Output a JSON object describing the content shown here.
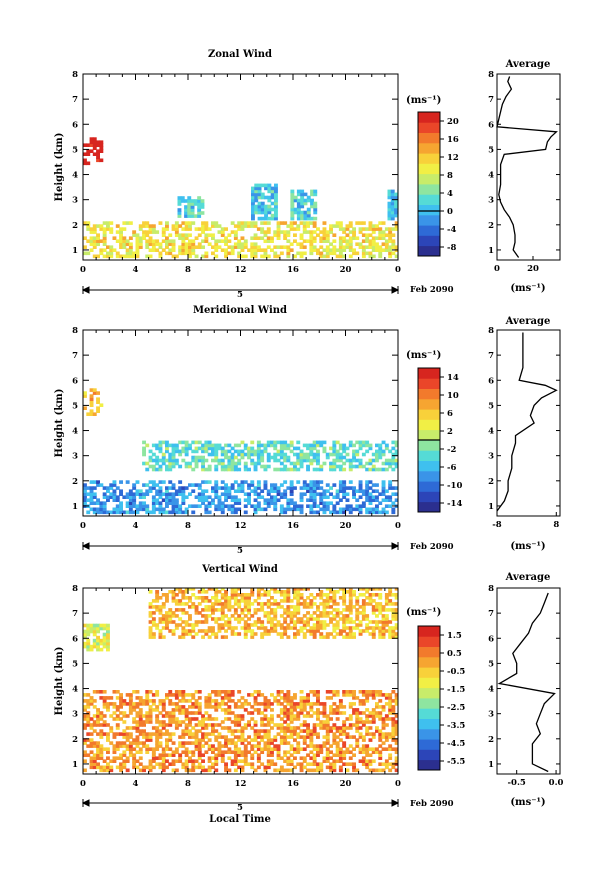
{
  "date_label": "Feb 2090",
  "xlabel": "Local Time",
  "ylabel": "Height (km)",
  "avg_title": "Average",
  "unit": "(ms⁻¹)",
  "panels": [
    {
      "title": "Zonal Wind",
      "colorbar": {
        "ticks": [
          "20",
          "16",
          "12",
          "8",
          "4",
          "0",
          "-4",
          "-8"
        ],
        "min": -10,
        "max": 22
      }
    },
    {
      "title": "Meridional Wind",
      "colorbar": {
        "ticks": [
          "14",
          "10",
          "6",
          "2",
          "-2",
          "-6",
          "-10",
          "-14"
        ],
        "min": -16,
        "max": 16
      }
    },
    {
      "title": "Vertical Wind",
      "colorbar": {
        "ticks": [
          "1.5",
          "0.5",
          "-0.5",
          "-1.5",
          "-2.5",
          "-3.5",
          "-4.5",
          "-5.5"
        ],
        "min": -6,
        "max": 2
      }
    }
  ],
  "chart_data": [
    {
      "type": "heatmap",
      "title": "Zonal Wind",
      "xlabel": "",
      "ylabel": "Height (km)",
      "x_ticks": [
        "0",
        "4",
        "8",
        "12",
        "16",
        "20",
        "0"
      ],
      "date_tick": "5",
      "xlim": [
        0,
        24
      ],
      "y_ticks": [
        "1",
        "2",
        "3",
        "4",
        "5",
        "6",
        "7",
        "8"
      ],
      "ylim": [
        0.6,
        8.0
      ],
      "colorbar_unit": "(ms⁻¹)",
      "colorbar_ticks": [
        20,
        16,
        12,
        8,
        4,
        0,
        -4,
        -8
      ],
      "clim": [
        -10,
        22
      ],
      "regions": [
        {
          "x": [
            0,
            1.5
          ],
          "y": [
            4.4,
            5.4
          ],
          "value": 22,
          "description": "strong eastward jet near 5 km"
        },
        {
          "x": [
            7.2,
            9.0
          ],
          "y": [
            2.3,
            3.1
          ],
          "value": 2
        },
        {
          "x": [
            12.8,
            14.8
          ],
          "y": [
            2.2,
            3.6
          ],
          "value": 1
        },
        {
          "x": [
            15.8,
            17.6
          ],
          "y": [
            2.2,
            3.4
          ],
          "value": 2
        },
        {
          "x": [
            23.2,
            24
          ],
          "y": [
            2.2,
            3.4
          ],
          "value": 1
        },
        {
          "x": [
            0,
            24
          ],
          "y": [
            0.7,
            2.1
          ],
          "value": 10,
          "description": "low-level band, mostly 8-16 ms-1"
        }
      ],
      "average_profile": {
        "title": "Average",
        "xlabel": "(ms⁻¹)",
        "x_ticks": [
          "0",
          "20"
        ],
        "xlim": [
          0,
          35
        ],
        "height": [
          0.7,
          1.0,
          1.3,
          1.6,
          2.0,
          2.3,
          2.6,
          2.9,
          3.2,
          3.6,
          4.0,
          4.4,
          4.8,
          5.0,
          5.3,
          5.5,
          5.7,
          5.9,
          6.2,
          6.5,
          6.8,
          7.1,
          7.4,
          7.7,
          7.9
        ],
        "value": [
          12,
          9,
          10,
          10,
          9,
          7,
          4,
          2,
          1,
          2,
          2,
          2,
          4,
          27,
          28,
          30,
          33,
          0,
          1,
          2,
          3,
          5,
          8,
          6,
          7
        ]
      }
    },
    {
      "type": "heatmap",
      "title": "Meridional Wind",
      "xlabel": "",
      "ylabel": "Height (km)",
      "x_ticks": [
        "0",
        "4",
        "8",
        "12",
        "16",
        "20",
        "0"
      ],
      "date_tick": "5",
      "xlim": [
        0,
        24
      ],
      "y_ticks": [
        "1",
        "2",
        "3",
        "4",
        "5",
        "6",
        "7",
        "8"
      ],
      "ylim": [
        0.6,
        8.0
      ],
      "colorbar_unit": "(ms⁻¹)",
      "colorbar_ticks": [
        14,
        10,
        6,
        2,
        -2,
        -6,
        -10,
        -14
      ],
      "clim": [
        -16,
        16
      ],
      "regions": [
        {
          "x": [
            0,
            1.5
          ],
          "y": [
            4.6,
            5.6
          ],
          "value": 6,
          "description": "southward/northward shear layer near 5 km"
        },
        {
          "x": [
            4.5,
            24
          ],
          "y": [
            2.4,
            3.6
          ],
          "value": -3,
          "description": "band of weak negative values near 3 km"
        },
        {
          "x": [
            0,
            24
          ],
          "y": [
            0.7,
            2.0
          ],
          "value": -8,
          "description": "scattered strong negative patches"
        }
      ],
      "average_profile": {
        "title": "Average",
        "xlabel": "(ms⁻¹)",
        "x_ticks": [
          "-8",
          "8"
        ],
        "xlim": [
          -8,
          9
        ],
        "height": [
          0.8,
          1.2,
          1.6,
          2.0,
          2.5,
          3.0,
          3.5,
          3.8,
          4.3,
          4.6,
          5.0,
          5.3,
          5.6,
          5.8,
          6.0,
          6.5,
          7.0,
          7.5,
          7.9
        ],
        "value": [
          -8,
          -6,
          -5,
          -5,
          -4,
          -4,
          -3,
          -3,
          2,
          1,
          2,
          4,
          8,
          5,
          -2,
          -1,
          -1,
          -1,
          -1
        ]
      }
    },
    {
      "type": "heatmap",
      "title": "Vertical Wind",
      "xlabel": "Local Time",
      "ylabel": "Height (km)",
      "x_ticks": [
        "0",
        "4",
        "8",
        "12",
        "16",
        "20",
        "0"
      ],
      "date_tick": "5",
      "xlim": [
        0,
        24
      ],
      "y_ticks": [
        "1",
        "2",
        "3",
        "4",
        "5",
        "6",
        "7",
        "8"
      ],
      "ylim": [
        0.6,
        8.0
      ],
      "colorbar_unit": "(ms⁻¹)",
      "colorbar_ticks": [
        1.5,
        0.5,
        -0.5,
        -1.5,
        -2.5,
        -3.5,
        -4.5,
        -5.5
      ],
      "clim": [
        -6,
        2
      ],
      "regions": [
        {
          "x": [
            0,
            2.0
          ],
          "y": [
            5.5,
            6.5
          ],
          "value": -1.5
        },
        {
          "x": [
            0,
            24
          ],
          "y": [
            0.7,
            3.9
          ],
          "value": 0.2,
          "description": "widespread weak downward/upward motion, orange-yellow"
        },
        {
          "x": [
            5,
            24
          ],
          "y": [
            6.0,
            8.0
          ],
          "value": -0.3,
          "description": "sparse yellow patches aloft"
        }
      ],
      "average_profile": {
        "title": "Average",
        "xlabel": "(ms⁻¹)",
        "x_ticks": [
          "-0.5",
          "0.0"
        ],
        "xlim": [
          -0.75,
          0.05
        ],
        "height": [
          0.7,
          1.0,
          1.4,
          1.8,
          2.2,
          2.6,
          3.0,
          3.4,
          3.8,
          4.2,
          4.6,
          5.0,
          5.4,
          5.8,
          6.2,
          6.6,
          7.0,
          7.4,
          7.8
        ],
        "value": [
          -0.1,
          -0.3,
          -0.3,
          -0.3,
          -0.2,
          -0.25,
          -0.2,
          -0.15,
          -0.02,
          -0.72,
          -0.5,
          -0.5,
          -0.55,
          -0.45,
          -0.35,
          -0.3,
          -0.2,
          -0.15,
          -0.1
        ]
      }
    }
  ]
}
